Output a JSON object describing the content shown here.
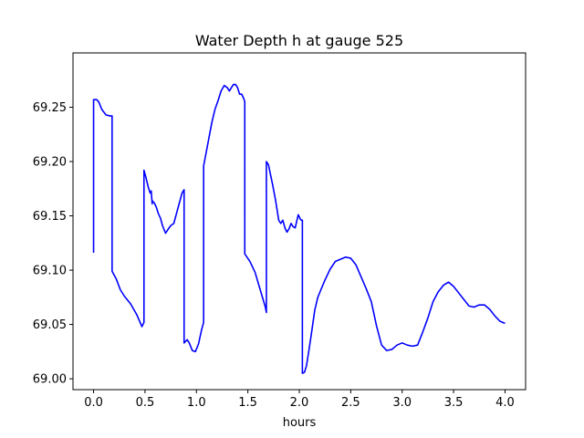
{
  "chart_data": {
    "type": "line",
    "title": "Water Depth h at gauge 525",
    "xlabel": "hours",
    "ylabel": "",
    "xlim": [
      -0.2,
      4.2
    ],
    "ylim": [
      68.99,
      69.3
    ],
    "xticks": [
      0.0,
      0.5,
      1.0,
      1.5,
      2.0,
      2.5,
      3.0,
      3.5,
      4.0
    ],
    "xtick_labels": [
      "0.0",
      "0.5",
      "1.0",
      "1.5",
      "2.0",
      "2.5",
      "3.0",
      "3.5",
      "4.0"
    ],
    "yticks": [
      69.0,
      69.05,
      69.1,
      69.15,
      69.2,
      69.25
    ],
    "ytick_labels": [
      "69.00",
      "69.05",
      "69.10",
      "69.15",
      "69.20",
      "69.25"
    ],
    "grid": false,
    "series": [
      {
        "color": "#0000ff",
        "x": [
          0.0,
          0.0,
          0.03,
          0.05,
          0.08,
          0.12,
          0.16,
          0.18,
          0.18,
          0.22,
          0.26,
          0.3,
          0.36,
          0.42,
          0.47,
          0.49,
          0.49,
          0.51,
          0.53,
          0.55,
          0.56,
          0.57,
          0.57,
          0.59,
          0.61,
          0.63,
          0.65,
          0.67,
          0.7,
          0.72,
          0.75,
          0.78,
          0.82,
          0.86,
          0.88,
          0.88,
          0.91,
          0.93,
          0.96,
          0.99,
          1.02,
          1.05,
          1.07,
          1.07,
          1.09,
          1.11,
          1.13,
          1.15,
          1.18,
          1.21,
          1.24,
          1.27,
          1.3,
          1.32,
          1.34,
          1.36,
          1.38,
          1.4,
          1.42,
          1.44,
          1.46,
          1.47,
          1.47,
          1.52,
          1.57,
          1.62,
          1.67,
          1.68,
          1.68,
          1.7,
          1.72,
          1.74,
          1.77,
          1.8,
          1.82,
          1.84,
          1.86,
          1.88,
          1.9,
          1.92,
          1.94,
          1.96,
          1.99,
          2.01,
          2.02,
          2.03,
          2.03,
          2.05,
          2.07,
          2.09,
          2.12,
          2.15,
          2.18,
          2.21,
          2.25,
          2.3,
          2.35,
          2.4,
          2.45,
          2.5,
          2.55,
          2.6,
          2.65,
          2.7,
          2.75,
          2.8,
          2.85,
          2.9,
          2.95,
          3.0,
          3.05,
          3.1,
          3.15,
          3.2,
          3.25,
          3.3,
          3.35,
          3.4,
          3.45,
          3.5,
          3.55,
          3.6,
          3.65,
          3.7,
          3.75,
          3.8,
          3.85,
          3.9,
          3.95,
          4.0
        ],
        "y": [
          69.116,
          69.257,
          69.257,
          69.255,
          69.248,
          69.243,
          69.242,
          69.242,
          69.099,
          69.092,
          69.082,
          69.076,
          69.069,
          69.059,
          69.048,
          69.052,
          69.192,
          69.185,
          69.177,
          69.171,
          69.173,
          69.161,
          69.164,
          69.162,
          69.158,
          69.152,
          69.148,
          69.141,
          69.134,
          69.137,
          69.141,
          69.143,
          69.157,
          69.171,
          69.174,
          69.033,
          69.036,
          69.033,
          69.026,
          69.025,
          69.032,
          69.045,
          69.052,
          69.196,
          69.206,
          69.216,
          69.226,
          69.236,
          69.248,
          69.256,
          69.265,
          69.27,
          69.268,
          69.265,
          69.268,
          69.271,
          69.271,
          69.268,
          69.262,
          69.262,
          69.258,
          69.255,
          69.115,
          69.108,
          69.098,
          69.082,
          69.066,
          69.061,
          69.2,
          69.197,
          69.188,
          69.179,
          69.164,
          69.146,
          69.143,
          69.146,
          69.139,
          69.135,
          69.138,
          69.143,
          69.14,
          69.139,
          69.151,
          69.147,
          69.146,
          69.146,
          69.005,
          69.006,
          69.012,
          69.024,
          69.043,
          69.063,
          69.075,
          69.082,
          69.091,
          69.101,
          69.108,
          69.11,
          69.112,
          69.111,
          69.105,
          69.094,
          69.083,
          69.071,
          69.049,
          69.031,
          69.026,
          69.027,
          69.031,
          69.033,
          69.031,
          69.03,
          69.031,
          69.043,
          69.056,
          69.071,
          69.08,
          69.086,
          69.089,
          69.085,
          69.079,
          69.073,
          69.067,
          69.066,
          69.068,
          69.068,
          69.064,
          69.058,
          69.053,
          69.051
        ]
      }
    ]
  }
}
